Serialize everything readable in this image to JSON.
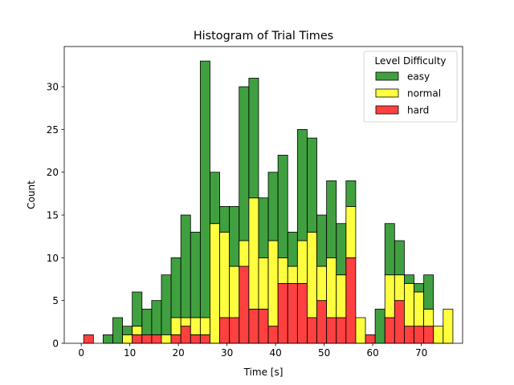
{
  "chart_data": {
    "type": "bar",
    "stacked": true,
    "title": "Histogram of Trial Times",
    "xlabel": "Time [s]",
    "ylabel": "Count",
    "xlim": [
      -3.5,
      78.5
    ],
    "ylim": [
      0,
      34.7
    ],
    "xticks": [
      0,
      10,
      20,
      30,
      40,
      50,
      60,
      70
    ],
    "yticks": [
      0,
      5,
      10,
      15,
      20,
      25,
      30
    ],
    "bin_start": 0.5,
    "bin_width": 2,
    "grid": false,
    "legend": {
      "title": "Level Difficulty",
      "placement": "top-right"
    },
    "series": [
      {
        "name": "hard",
        "color": "#ff0000",
        "values": [
          1,
          0,
          0,
          0,
          0,
          1,
          1,
          1,
          0,
          1,
          2,
          1,
          1,
          0,
          3,
          3,
          9,
          4,
          4,
          2,
          7,
          7,
          7,
          3,
          5,
          3,
          3,
          10,
          0,
          1,
          0,
          3,
          5,
          2,
          2,
          2,
          0,
          0
        ]
      },
      {
        "name": "normal",
        "color": "#ffff00",
        "values": [
          0,
          0,
          0,
          0,
          1,
          1,
          0,
          0,
          1,
          2,
          1,
          2,
          2,
          14,
          10,
          6,
          3,
          13,
          6,
          10,
          3,
          2,
          5,
          10,
          4,
          7,
          5,
          6,
          3,
          0,
          0,
          5,
          3,
          5,
          4,
          2,
          2,
          4
        ]
      },
      {
        "name": "easy",
        "color": "#008000",
        "values": [
          0,
          0,
          1,
          3,
          1,
          4,
          3,
          4,
          7,
          7,
          12,
          10,
          30,
          6,
          3,
          7,
          18,
          14,
          7,
          8,
          12,
          4,
          13,
          11,
          6,
          9,
          6,
          3,
          0,
          0,
          4,
          6,
          4,
          1,
          1,
          4,
          0,
          0
        ]
      }
    ]
  }
}
